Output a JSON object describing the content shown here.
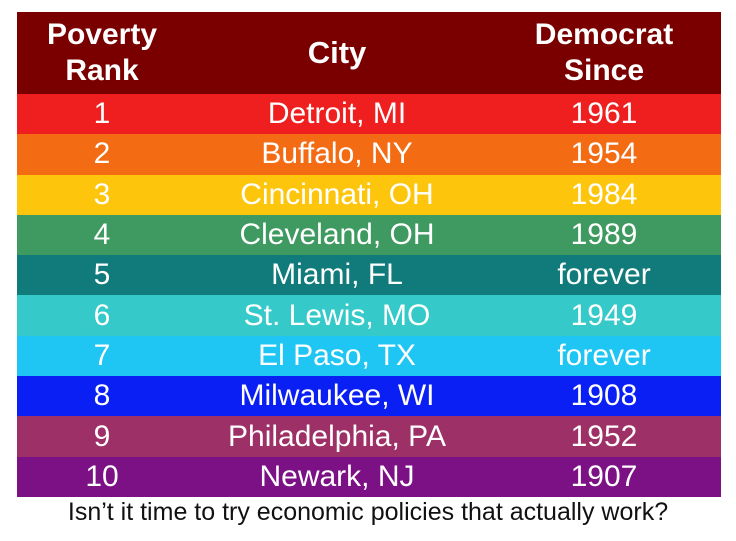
{
  "table": {
    "headers": {
      "rank": "Poverty\nRank",
      "city": "City",
      "since": "Democrat\nSince"
    },
    "rows": [
      {
        "rank": "1",
        "city": "Detroit, MI",
        "since": "1961",
        "color": "#ef1f1f"
      },
      {
        "rank": "2",
        "city": "Buffalo, NY",
        "since": "1954",
        "color": "#f36b13"
      },
      {
        "rank": "3",
        "city": "Cincinnati, OH",
        "since": "1984",
        "color": "#fdc60d"
      },
      {
        "rank": "4",
        "city": "Cleveland, OH",
        "since": "1989",
        "color": "#3f9a61"
      },
      {
        "rank": "5",
        "city": "Miami, FL",
        "since": "forever",
        "color": "#117b7b"
      },
      {
        "rank": "6",
        "city": "St. Lewis, MO",
        "since": "1949",
        "color": "#35c9c9"
      },
      {
        "rank": "7",
        "city": "El Paso, TX",
        "since": "forever",
        "color": "#1fc6f3"
      },
      {
        "rank": "8",
        "city": "Milwaukee, WI",
        "since": "1908",
        "color": "#0a1ff3"
      },
      {
        "rank": "9",
        "city": "Philadelphia, PA",
        "since": "1952",
        "color": "#9d3167"
      },
      {
        "rank": "10",
        "city": "Newark, NJ",
        "since": "1907",
        "color": "#7c1186"
      }
    ]
  },
  "caption": "Isn’t it time to try economic policies that actually work?"
}
